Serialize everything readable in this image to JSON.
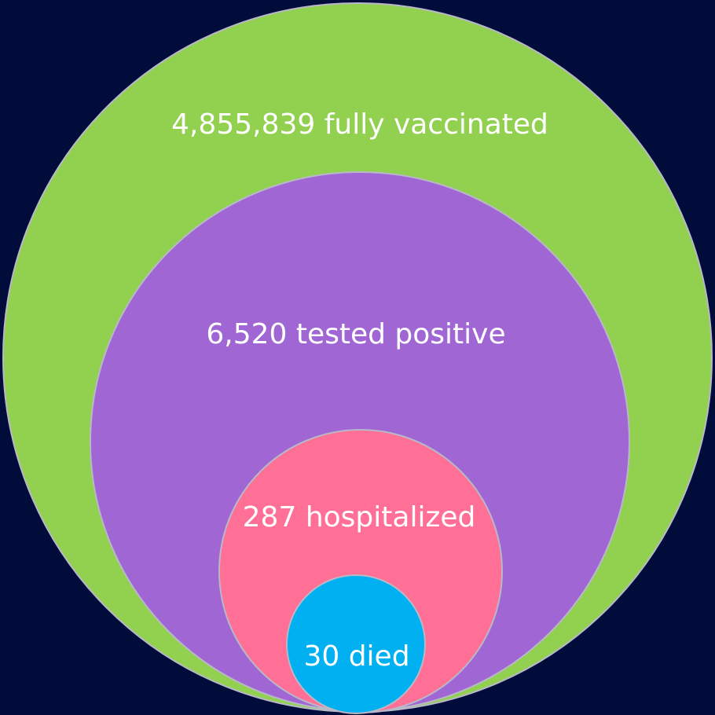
{
  "circles": [
    {
      "label": "4,855,839 fully vaccinated"
    },
    {
      "label": "6,520 tested positive"
    },
    {
      "label": "287 hospitalized"
    },
    {
      "label": "30 died"
    }
  ]
}
